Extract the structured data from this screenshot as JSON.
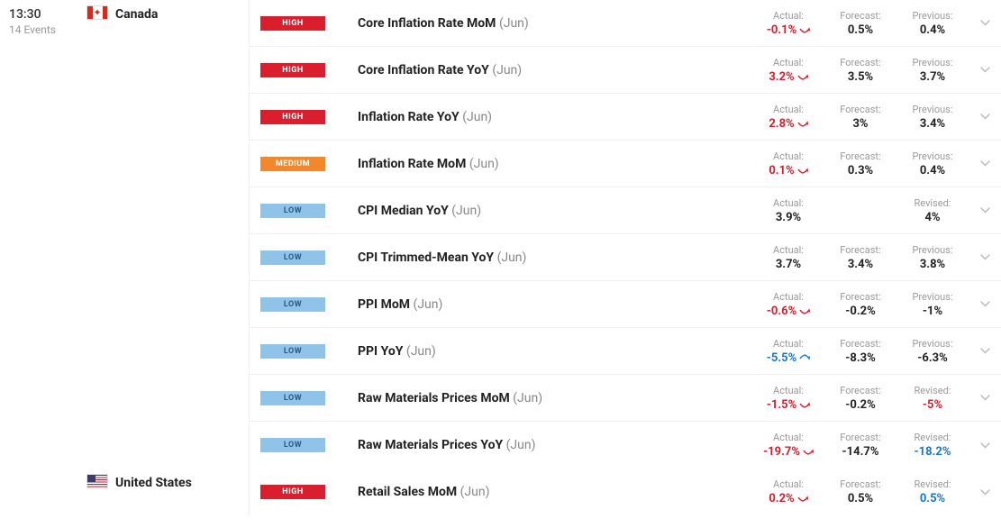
{
  "time": {
    "value": "13:30",
    "eventsCount": "14 Events"
  },
  "columns": {
    "actual": "Actual:",
    "forecast": "Forecast:",
    "previous": "Previous:",
    "revised": "Revised:"
  },
  "impactLabels": {
    "high": "HIGH",
    "medium": "MEDIUM",
    "low": "LOW"
  },
  "countries": [
    {
      "name": "Canada",
      "flag": "ca",
      "events": [
        {
          "impact": "high",
          "title": "Core Inflation Rate MoM",
          "period": "(Jun)",
          "actual": {
            "value": "-0.1%",
            "dir": "down"
          },
          "forecast": "0.5%",
          "previous": "0.4%",
          "prevLabel": "previous"
        },
        {
          "impact": "high",
          "title": "Core Inflation Rate YoY",
          "period": "(Jun)",
          "actual": {
            "value": "3.2%",
            "dir": "down"
          },
          "forecast": "3.5%",
          "previous": "3.7%",
          "prevLabel": "previous"
        },
        {
          "impact": "high",
          "title": "Inflation Rate YoY",
          "period": "(Jun)",
          "actual": {
            "value": "2.8%",
            "dir": "down"
          },
          "forecast": "3%",
          "previous": "3.4%",
          "prevLabel": "previous"
        },
        {
          "impact": "medium",
          "title": "Inflation Rate MoM",
          "period": "(Jun)",
          "actual": {
            "value": "0.1%",
            "dir": "down"
          },
          "forecast": "0.3%",
          "previous": "0.4%",
          "prevLabel": "previous"
        },
        {
          "impact": "low",
          "title": "CPI Median YoY",
          "period": "(Jun)",
          "actual": {
            "value": "3.9%",
            "dir": "neutral"
          },
          "forecast": "",
          "previous": "4%",
          "prevLabel": "revised"
        },
        {
          "impact": "low",
          "title": "CPI Trimmed-Mean YoY",
          "period": "(Jun)",
          "actual": {
            "value": "3.7%",
            "dir": "neutral"
          },
          "forecast": "3.4%",
          "previous": "3.8%",
          "prevLabel": "previous"
        },
        {
          "impact": "low",
          "title": "PPI MoM",
          "period": "(Jun)",
          "actual": {
            "value": "-0.6%",
            "dir": "down"
          },
          "forecast": "-0.2%",
          "previous": "-1%",
          "prevLabel": "previous"
        },
        {
          "impact": "low",
          "title": "PPI YoY",
          "period": "(Jun)",
          "actual": {
            "value": "-5.5%",
            "dir": "up"
          },
          "forecast": "-8.3%",
          "previous": "-6.3%",
          "prevLabel": "previous"
        },
        {
          "impact": "low",
          "title": "Raw Materials Prices MoM",
          "period": "(Jun)",
          "actual": {
            "value": "-1.5%",
            "dir": "down"
          },
          "forecast": "-0.2%",
          "previous": "-5%",
          "prevLabel": "revised",
          "prevDir": "down"
        },
        {
          "impact": "low",
          "title": "Raw Materials Prices YoY",
          "period": "(Jun)",
          "actual": {
            "value": "-19.7%",
            "dir": "down"
          },
          "forecast": "-14.7%",
          "previous": "-18.2%",
          "prevLabel": "revised",
          "prevDir": "up"
        }
      ]
    },
    {
      "name": "United States",
      "flag": "us",
      "events": [
        {
          "impact": "high",
          "title": "Retail Sales MoM",
          "period": "(Jun)",
          "actual": {
            "value": "0.2%",
            "dir": "down"
          },
          "forecast": "0.5%",
          "previous": "0.5%",
          "prevLabel": "revised",
          "prevDir": "up"
        }
      ]
    }
  ]
}
